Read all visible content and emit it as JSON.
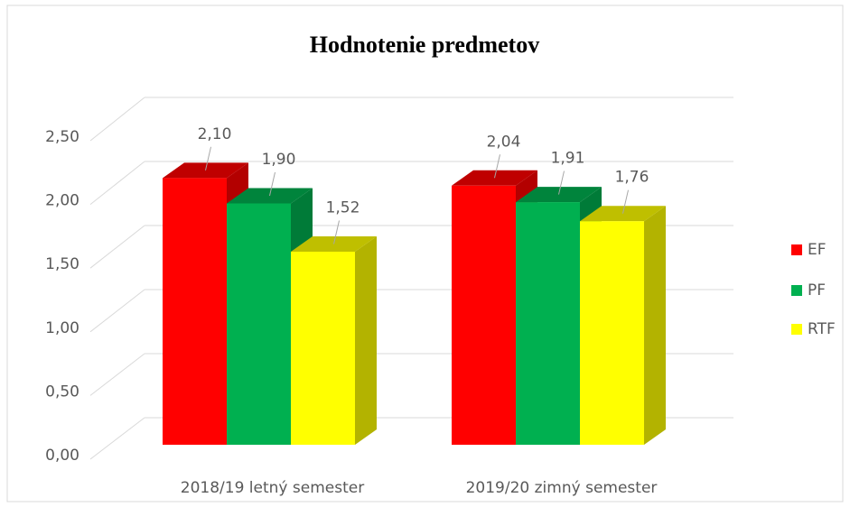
{
  "chart_data": {
    "type": "bar3d",
    "title": "Hodnotenie predmetov",
    "categories": [
      "2018/19 letný semester",
      "2019/20 zimný semester"
    ],
    "series": [
      {
        "name": "EF",
        "color": "#ff0000",
        "values": [
          2.1,
          2.04
        ],
        "value_labels": [
          "2,10",
          "2,04"
        ]
      },
      {
        "name": "PF",
        "color": "#00b050",
        "values": [
          1.9,
          1.91
        ],
        "value_labels": [
          "1,90",
          "1,91"
        ]
      },
      {
        "name": "RTF",
        "color": "#ffff00",
        "values": [
          1.52,
          1.76
        ],
        "value_labels": [
          "1,52",
          "1,76"
        ]
      }
    ],
    "ylim": [
      0,
      2.5
    ],
    "yticks": [
      {
        "value": 0,
        "label": "0,00"
      },
      {
        "value": 0.5,
        "label": "0,50"
      },
      {
        "value": 1,
        "label": "1,00"
      },
      {
        "value": 1.5,
        "label": "1,50"
      },
      {
        "value": 2,
        "label": "2,00"
      },
      {
        "value": 2.5,
        "label": "2,50"
      }
    ],
    "grid": true,
    "legend": "right"
  }
}
